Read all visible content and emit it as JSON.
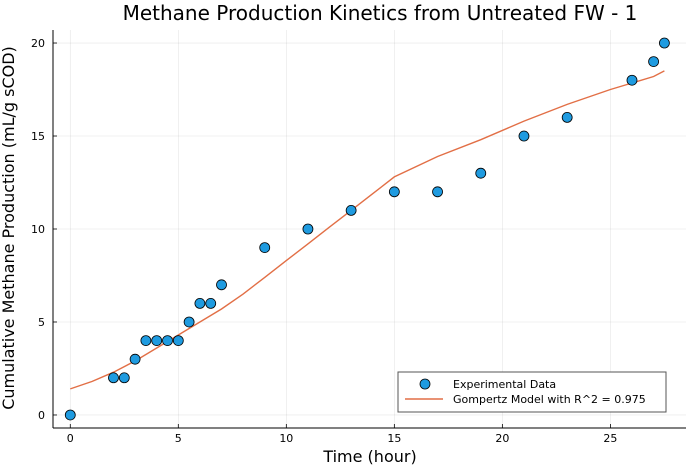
{
  "chart_data": {
    "type": "scatter",
    "title": "Methane Production Kinetics from Untreated FW - 1",
    "xlabel": "Time (hour)",
    "ylabel": "Cumulative Methane Production (mL/g sCOD)",
    "xlim": [
      -0.8,
      28.5
    ],
    "ylim": [
      -0.7,
      20.7
    ],
    "xticks": [
      0,
      5,
      10,
      15,
      20,
      25
    ],
    "yticks": [
      0,
      5,
      10,
      15,
      20
    ],
    "grid": true,
    "legend_position": "bottom-right",
    "series": [
      {
        "name": "Experimental Data",
        "kind": "scatter",
        "color": "#1f9be0",
        "x": [
          0,
          2,
          2.5,
          3,
          3.5,
          4,
          4.5,
          5,
          5.5,
          6,
          6.5,
          7,
          9,
          11,
          13,
          15,
          17,
          19,
          21,
          23,
          26,
          27,
          27.5
        ],
        "y": [
          0,
          2,
          2,
          3,
          4,
          4,
          4,
          4,
          5,
          6,
          6,
          7,
          9,
          10,
          11,
          12,
          12,
          13,
          15,
          16,
          18,
          19,
          20
        ]
      },
      {
        "name": "Gompertz Model with R^2 = 0.975",
        "kind": "line",
        "color": "#e26f46",
        "x": [
          0,
          1,
          2,
          3,
          4,
          5,
          6,
          7,
          8,
          9,
          10,
          11,
          12,
          13,
          14,
          15,
          17,
          19,
          21,
          23,
          25,
          27,
          27.5
        ],
        "y": [
          1.4,
          1.8,
          2.3,
          2.9,
          3.6,
          4.3,
          5.0,
          5.7,
          6.5,
          7.4,
          8.3,
          9.2,
          10.1,
          11.0,
          11.9,
          12.8,
          13.9,
          14.8,
          15.8,
          16.7,
          17.5,
          18.2,
          18.5
        ]
      }
    ]
  }
}
